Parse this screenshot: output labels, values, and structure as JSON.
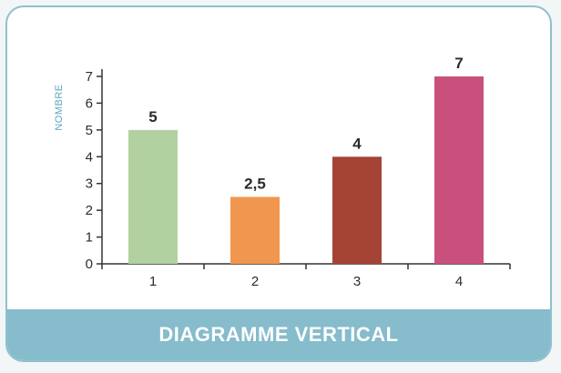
{
  "chart_data": {
    "type": "bar",
    "title": "DIAGRAMME VERTICAL",
    "xlabel": "",
    "ylabel": "NOMBRE",
    "categories": [
      "1",
      "2",
      "3",
      "4"
    ],
    "values": [
      5,
      2.5,
      4,
      7
    ],
    "value_labels": [
      "5",
      "2,5",
      "4",
      "7"
    ],
    "yticks": [
      "0",
      "1",
      "2",
      "3",
      "4",
      "5",
      "6",
      "7"
    ],
    "ylim": [
      0,
      7
    ],
    "grid": false,
    "colors": [
      "#b1d1a0",
      "#f1964f",
      "#a54434",
      "#c9507d"
    ]
  },
  "colors": {
    "footer_bg": "#86bccb",
    "border": "#8ec1ce",
    "axis": "#333333"
  }
}
